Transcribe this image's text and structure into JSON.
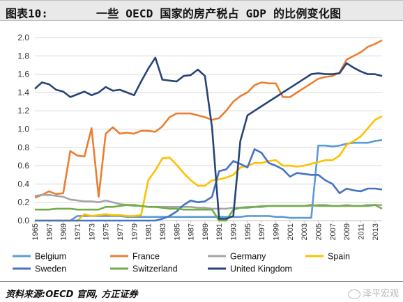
{
  "header": {
    "label": "图表10:",
    "title": "一些 OECD 国家的房产税占 GDP 的比例变化图"
  },
  "footer": {
    "source": "资料来源:OECD 官网, 方正证券",
    "watermark": "泽平宏观"
  },
  "chart_data": {
    "type": "line",
    "x": [
      1965,
      1966,
      1967,
      1968,
      1969,
      1970,
      1971,
      1972,
      1973,
      1974,
      1975,
      1976,
      1977,
      1978,
      1979,
      1980,
      1981,
      1982,
      1983,
      1984,
      1985,
      1986,
      1987,
      1988,
      1989,
      1990,
      1991,
      1992,
      1993,
      1994,
      1995,
      1996,
      1997,
      1998,
      1999,
      2000,
      2001,
      2002,
      2003,
      2004,
      2005,
      2006,
      2007,
      2008,
      2009,
      2010,
      2011,
      2012,
      2013,
      2014
    ],
    "xticks": [
      1965,
      1967,
      1969,
      1971,
      1973,
      1975,
      1977,
      1979,
      1981,
      1983,
      1985,
      1987,
      1989,
      1991,
      1993,
      1995,
      1997,
      1999,
      2001,
      2003,
      2005,
      2007,
      2009,
      2011,
      2013
    ],
    "ylim": [
      0,
      2.0
    ],
    "yticks": [
      "0.0",
      "0.2",
      "0.4",
      "0.6",
      "0.8",
      "1.0",
      "1.2",
      "1.4",
      "1.6",
      "1.8",
      "2.0"
    ],
    "legend_position": "bottom",
    "series": [
      {
        "name": "Belgium",
        "color": "#5b9bd5",
        "values": [
          0.0,
          0.0,
          0.0,
          0.0,
          0.0,
          0.0,
          0.05,
          0.05,
          0.05,
          0.05,
          0.05,
          0.05,
          0.05,
          0.04,
          0.04,
          0.04,
          0.04,
          0.04,
          0.04,
          0.04,
          0.04,
          0.04,
          0.04,
          0.04,
          0.04,
          0.04,
          0.04,
          0.04,
          0.04,
          0.04,
          0.05,
          0.05,
          0.05,
          0.05,
          0.04,
          0.04,
          0.03,
          0.03,
          0.03,
          0.03,
          0.82,
          0.82,
          0.81,
          0.82,
          0.84,
          0.85,
          0.85,
          0.85,
          0.87,
          0.88
        ]
      },
      {
        "name": "France",
        "color": "#ed7d31",
        "values": [
          0.25,
          0.28,
          0.32,
          0.29,
          0.3,
          0.76,
          0.71,
          0.7,
          1.01,
          0.26,
          0.95,
          1.02,
          0.95,
          0.96,
          0.95,
          0.98,
          0.98,
          0.97,
          1.03,
          1.13,
          1.17,
          1.17,
          1.17,
          1.15,
          1.13,
          1.1,
          1.12,
          1.2,
          1.3,
          1.36,
          1.4,
          1.48,
          1.51,
          1.5,
          1.5,
          1.35,
          1.35,
          1.4,
          1.45,
          1.5,
          1.55,
          1.57,
          1.58,
          1.62,
          1.76,
          1.8,
          1.84,
          1.9,
          1.93,
          1.97
        ]
      },
      {
        "name": "Germany",
        "color": "#a5a5a5",
        "values": [
          0.27,
          0.28,
          0.28,
          0.27,
          0.26,
          0.23,
          0.22,
          0.21,
          0.21,
          0.2,
          0.22,
          0.2,
          0.18,
          0.17,
          0.16,
          0.16,
          0.15,
          0.15,
          0.15,
          0.15,
          0.15,
          0.15,
          0.15,
          0.14,
          0.14,
          0.13,
          0.13,
          0.13,
          0.14,
          0.14,
          0.15,
          0.15,
          0.16,
          0.16,
          0.16,
          0.16,
          0.16,
          0.16,
          0.16,
          0.16,
          0.17,
          0.17,
          0.16,
          0.16,
          0.17,
          0.16,
          0.16,
          0.17,
          0.17,
          0.17
        ]
      },
      {
        "name": "Spain",
        "color": "#ffc000",
        "values": [
          0.0,
          0.0,
          0.0,
          0.0,
          0.0,
          0.0,
          0.0,
          0.07,
          0.05,
          0.06,
          0.07,
          0.06,
          0.06,
          0.05,
          0.05,
          0.06,
          0.44,
          0.55,
          0.68,
          0.69,
          0.61,
          0.52,
          0.44,
          0.38,
          0.38,
          0.44,
          0.45,
          0.47,
          0.5,
          0.58,
          0.6,
          0.63,
          0.63,
          0.65,
          0.66,
          0.6,
          0.6,
          0.59,
          0.6,
          0.62,
          0.64,
          0.66,
          0.66,
          0.71,
          0.83,
          0.87,
          0.92,
          1.01,
          1.1,
          1.14
        ]
      },
      {
        "name": "Sweden",
        "color": "#4472c4",
        "values": [
          0.0,
          0.0,
          0.0,
          0.0,
          0.0,
          0.0,
          0.0,
          0.0,
          0.0,
          0.0,
          0.0,
          0.0,
          0.0,
          0.0,
          0.0,
          0.0,
          0.0,
          0.0,
          0.02,
          0.05,
          0.1,
          0.17,
          0.22,
          0.2,
          0.21,
          0.26,
          0.54,
          0.56,
          0.65,
          0.62,
          0.58,
          0.78,
          0.74,
          0.63,
          0.6,
          0.56,
          0.48,
          0.52,
          0.51,
          0.5,
          0.5,
          0.44,
          0.4,
          0.3,
          0.35,
          0.33,
          0.32,
          0.35,
          0.35,
          0.34
        ]
      },
      {
        "name": "Switzerland",
        "color": "#70ad47",
        "values": [
          0.12,
          0.12,
          0.12,
          0.13,
          0.13,
          0.13,
          0.12,
          0.12,
          0.12,
          0.12,
          0.15,
          0.15,
          0.16,
          0.17,
          0.17,
          0.16,
          0.15,
          0.15,
          0.14,
          0.13,
          0.13,
          0.12,
          0.12,
          0.12,
          0.12,
          0.12,
          0.0,
          0.0,
          0.12,
          0.14,
          0.14,
          0.15,
          0.15,
          0.16,
          0.16,
          0.16,
          0.16,
          0.16,
          0.16,
          0.17,
          0.16,
          0.16,
          0.16,
          0.16,
          0.16,
          0.16,
          0.16,
          0.16,
          0.17,
          0.13
        ]
      },
      {
        "name": "United Kingdom",
        "color": "#264478",
        "values": [
          1.44,
          1.51,
          1.49,
          1.43,
          1.41,
          1.35,
          1.38,
          1.41,
          1.37,
          1.4,
          1.46,
          1.42,
          1.43,
          1.4,
          1.37,
          1.52,
          1.66,
          1.78,
          1.54,
          1.53,
          1.52,
          1.58,
          1.59,
          1.65,
          1.58,
          1.02,
          0.02,
          0.02,
          0.05,
          0.87,
          1.15,
          1.2,
          1.25,
          1.3,
          1.35,
          1.4,
          1.45,
          1.5,
          1.55,
          1.6,
          1.61,
          1.6,
          1.6,
          1.61,
          1.72,
          1.67,
          1.63,
          1.6,
          1.6,
          1.58
        ]
      }
    ]
  }
}
